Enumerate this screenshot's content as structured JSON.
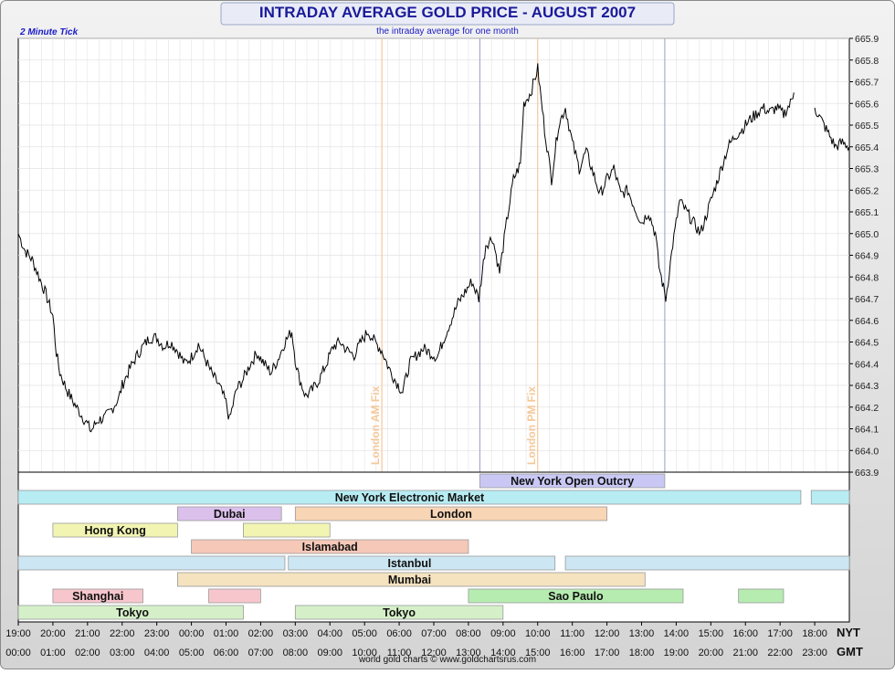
{
  "title": "INTRADAY AVERAGE GOLD PRICE - AUGUST 2007",
  "subtitle": "the intraday average for one month",
  "tick_label": "2 Minute Tick",
  "credit": "world gold charts  ©  www.goldchartsrus.com",
  "colors": {
    "title": "#1a1a9a",
    "line": "#000000",
    "fix_line": "#f5c89a",
    "session_line": "#9aa0c8",
    "grid": "#e3e3e3"
  },
  "chart_data": {
    "type": "line",
    "title": "INTRADAY AVERAGE GOLD PRICE - AUGUST 2007",
    "subtitle": "the intraday average for one month",
    "xlabel": "",
    "ylabel": "",
    "ylim": [
      663.9,
      665.9
    ],
    "y_ticks": [
      "663.9",
      "664.0",
      "664.1",
      "664.2",
      "664.3",
      "664.4",
      "664.5",
      "664.6",
      "664.7",
      "664.8",
      "664.9",
      "665.0",
      "665.1",
      "665.2",
      "665.3",
      "665.4",
      "665.5",
      "665.6",
      "665.7",
      "665.8",
      "665.9"
    ],
    "x_axis_nyt_label": "NYT",
    "x_axis_gmt_label": "GMT",
    "x_ticks_nyt": [
      "19:00",
      "20:00",
      "21:00",
      "22:00",
      "23:00",
      "00:00",
      "01:00",
      "02:00",
      "03:00",
      "04:00",
      "05:00",
      "06:00",
      "07:00",
      "08:00",
      "09:00",
      "10:00",
      "11:00",
      "12:00",
      "13:00",
      "14:00",
      "15:00",
      "16:00",
      "17:00",
      "18:00"
    ],
    "x_ticks_gmt": [
      "00:00",
      "01:00",
      "02:00",
      "03:00",
      "04:00",
      "05:00",
      "06:00",
      "07:00",
      "08:00",
      "09:00",
      "10:00",
      "11:00",
      "12:00",
      "13:00",
      "14:00",
      "15:00",
      "16:00",
      "17:00",
      "18:00",
      "19:00",
      "20:00",
      "21:00",
      "22:00",
      "23:00"
    ],
    "grid": true,
    "annotations": [
      {
        "text": "London AM Fix",
        "x_gmt_hour": 10.5
      },
      {
        "text": "London PM Fix",
        "x_gmt_hour": 15.0
      }
    ],
    "session_markers_gmt_hour": [
      13.33,
      18.67
    ],
    "series": [
      {
        "points_gmt_hour_price": [
          [
            0.0,
            665.0
          ],
          [
            0.2,
            664.92
          ],
          [
            0.4,
            664.88
          ],
          [
            0.6,
            664.8
          ],
          [
            0.8,
            664.72
          ],
          [
            1.0,
            664.62
          ],
          [
            1.1,
            664.45
          ],
          [
            1.2,
            664.36
          ],
          [
            1.4,
            664.28
          ],
          [
            1.6,
            664.22
          ],
          [
            1.8,
            664.17
          ],
          [
            2.0,
            664.12
          ],
          [
            2.1,
            664.09
          ],
          [
            2.3,
            664.14
          ],
          [
            2.5,
            664.15
          ],
          [
            2.7,
            664.19
          ],
          [
            2.9,
            664.24
          ],
          [
            3.0,
            664.3
          ],
          [
            3.2,
            664.37
          ],
          [
            3.4,
            664.43
          ],
          [
            3.6,
            664.48
          ],
          [
            3.8,
            664.52
          ],
          [
            4.0,
            664.52
          ],
          [
            4.2,
            664.48
          ],
          [
            4.4,
            664.5
          ],
          [
            4.6,
            664.46
          ],
          [
            4.8,
            664.4
          ],
          [
            5.0,
            664.43
          ],
          [
            5.2,
            664.49
          ],
          [
            5.4,
            664.42
          ],
          [
            5.6,
            664.35
          ],
          [
            5.8,
            664.3
          ],
          [
            6.0,
            664.22
          ],
          [
            6.1,
            664.14
          ],
          [
            6.3,
            664.28
          ],
          [
            6.5,
            664.33
          ],
          [
            6.7,
            664.4
          ],
          [
            6.9,
            664.45
          ],
          [
            7.1,
            664.4
          ],
          [
            7.3,
            664.36
          ],
          [
            7.5,
            664.42
          ],
          [
            7.7,
            664.5
          ],
          [
            7.9,
            664.55
          ],
          [
            8.0,
            664.42
          ],
          [
            8.1,
            664.34
          ],
          [
            8.3,
            664.25
          ],
          [
            8.5,
            664.28
          ],
          [
            8.7,
            664.33
          ],
          [
            8.9,
            664.4
          ],
          [
            9.1,
            664.48
          ],
          [
            9.3,
            664.5
          ],
          [
            9.5,
            664.46
          ],
          [
            9.7,
            664.44
          ],
          [
            9.9,
            664.5
          ],
          [
            10.1,
            664.55
          ],
          [
            10.3,
            664.5
          ],
          [
            10.5,
            664.46
          ],
          [
            10.7,
            664.38
          ],
          [
            10.9,
            664.32
          ],
          [
            11.1,
            664.27
          ],
          [
            11.3,
            664.4
          ],
          [
            11.5,
            664.44
          ],
          [
            11.7,
            664.47
          ],
          [
            11.9,
            664.45
          ],
          [
            12.1,
            664.43
          ],
          [
            12.3,
            664.52
          ],
          [
            12.5,
            664.6
          ],
          [
            12.7,
            664.68
          ],
          [
            12.9,
            664.73
          ],
          [
            13.1,
            664.78
          ],
          [
            13.3,
            664.7
          ],
          [
            13.5,
            664.95
          ],
          [
            13.7,
            664.98
          ],
          [
            13.9,
            664.82
          ],
          [
            14.1,
            665.05
          ],
          [
            14.3,
            665.25
          ],
          [
            14.5,
            665.32
          ],
          [
            14.6,
            665.6
          ],
          [
            14.8,
            665.65
          ],
          [
            15.0,
            665.76
          ],
          [
            15.2,
            665.48
          ],
          [
            15.4,
            665.25
          ],
          [
            15.6,
            665.5
          ],
          [
            15.8,
            665.58
          ],
          [
            16.0,
            665.42
          ],
          [
            16.2,
            665.3
          ],
          [
            16.4,
            665.38
          ],
          [
            16.6,
            665.28
          ],
          [
            16.8,
            665.18
          ],
          [
            17.0,
            665.25
          ],
          [
            17.2,
            665.3
          ],
          [
            17.4,
            665.18
          ],
          [
            17.6,
            665.2
          ],
          [
            17.8,
            665.12
          ],
          [
            18.0,
            665.05
          ],
          [
            18.2,
            665.1
          ],
          [
            18.4,
            665.0
          ],
          [
            18.5,
            664.85
          ],
          [
            18.7,
            664.7
          ],
          [
            18.9,
            664.95
          ],
          [
            19.1,
            665.15
          ],
          [
            19.3,
            665.1
          ],
          [
            19.5,
            665.05
          ],
          [
            19.7,
            665.0
          ],
          [
            19.9,
            665.1
          ],
          [
            20.1,
            665.2
          ],
          [
            20.3,
            665.3
          ],
          [
            20.5,
            665.4
          ],
          [
            20.7,
            665.45
          ],
          [
            20.9,
            665.48
          ],
          [
            21.1,
            665.52
          ],
          [
            21.3,
            665.55
          ],
          [
            21.5,
            665.58
          ],
          [
            21.7,
            665.56
          ],
          [
            21.9,
            665.58
          ],
          [
            22.1,
            665.55
          ],
          [
            22.3,
            665.6
          ],
          [
            22.4,
            665.65
          ],
          [
            23.0,
            665.58
          ],
          [
            23.2,
            665.52
          ],
          [
            23.4,
            665.46
          ],
          [
            23.6,
            665.4
          ],
          [
            23.8,
            665.42
          ],
          [
            24.0,
            665.4
          ]
        ]
      }
    ],
    "market_sessions": [
      {
        "name": "New York Open Outcry",
        "row": 0,
        "segments": [
          [
            13.33,
            18.67
          ]
        ],
        "color": "#c9c8f5",
        "label_gmt_hour": 16.0
      },
      {
        "name": "New York Electronic Market",
        "row": 1,
        "segments": [
          [
            0.0,
            22.6
          ],
          [
            22.9,
            24.0
          ]
        ],
        "color": "#b7ecf3",
        "label_gmt_hour": 11.3
      },
      {
        "name": "Dubai",
        "row": 2,
        "segments": [
          [
            4.6,
            7.6
          ]
        ],
        "color": "#dcc0ec",
        "label_gmt_hour": 6.1
      },
      {
        "name": "London",
        "row": 2,
        "segments": [
          [
            8.0,
            17.0
          ]
        ],
        "color": "#f8d5b5",
        "label_gmt_hour": 12.5
      },
      {
        "name": "Hong Kong",
        "row": 3,
        "segments": [
          [
            1.0,
            4.6
          ],
          [
            6.5,
            9.0
          ]
        ],
        "color": "#f2f5b2",
        "label_gmt_hour": 2.8
      },
      {
        "name": "Islamabad",
        "row": 4,
        "segments": [
          [
            5.0,
            13.0
          ]
        ],
        "color": "#f6c8b8",
        "label_gmt_hour": 9.0
      },
      {
        "name": "Istanbul",
        "row": 5,
        "segments": [
          [
            0.0,
            7.7
          ],
          [
            7.8,
            15.5
          ],
          [
            15.8,
            24.0
          ]
        ],
        "color": "#cce7f3",
        "label_gmt_hour": 11.3
      },
      {
        "name": "Mumbai",
        "row": 6,
        "segments": [
          [
            4.6,
            18.1
          ]
        ],
        "color": "#f5e3c0",
        "label_gmt_hour": 11.3
      },
      {
        "name": "Shanghai",
        "row": 7,
        "segments": [
          [
            1.0,
            3.6
          ],
          [
            5.5,
            7.0
          ]
        ],
        "color": "#f7c6cc",
        "label_gmt_hour": 2.3
      },
      {
        "name": "Sao Paulo",
        "row": 7,
        "segments": [
          [
            13.0,
            19.2
          ],
          [
            20.8,
            22.1
          ]
        ],
        "color": "#b6ecb0",
        "label_gmt_hour": 16.1
      },
      {
        "name": "Tokyo",
        "row": 8,
        "segments": [
          [
            0.0,
            6.5
          ]
        ],
        "color": "#d5f0c8",
        "label_gmt_hour": 3.3
      },
      {
        "name": "Tokyo",
        "row": 8,
        "segments": [
          [
            8.0,
            14.0
          ]
        ],
        "color": "#d5f0c8",
        "label_gmt_hour": 11.0
      }
    ]
  }
}
